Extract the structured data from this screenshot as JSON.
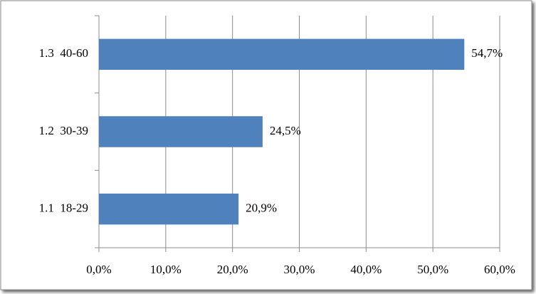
{
  "chart_data": {
    "type": "bar",
    "orientation": "horizontal",
    "categories": [
      "1.1  18-29",
      "1.2  30-39",
      "1.3  40-60"
    ],
    "values": [
      20.9,
      24.5,
      54.7
    ],
    "value_labels": [
      "20,9%",
      "24,5%",
      "54,7%"
    ],
    "color": "#4f81bd",
    "xlim": [
      0,
      60
    ],
    "xticks": [
      {
        "value": 0,
        "label": "0,0%"
      },
      {
        "value": 10,
        "label": "10,0%"
      },
      {
        "value": 20,
        "label": "20,0%"
      },
      {
        "value": 30,
        "label": "30,0%"
      },
      {
        "value": 40,
        "label": "40,0%"
      },
      {
        "value": 50,
        "label": "50,0%"
      },
      {
        "value": 60,
        "label": "60,0%"
      }
    ],
    "grid": true
  }
}
